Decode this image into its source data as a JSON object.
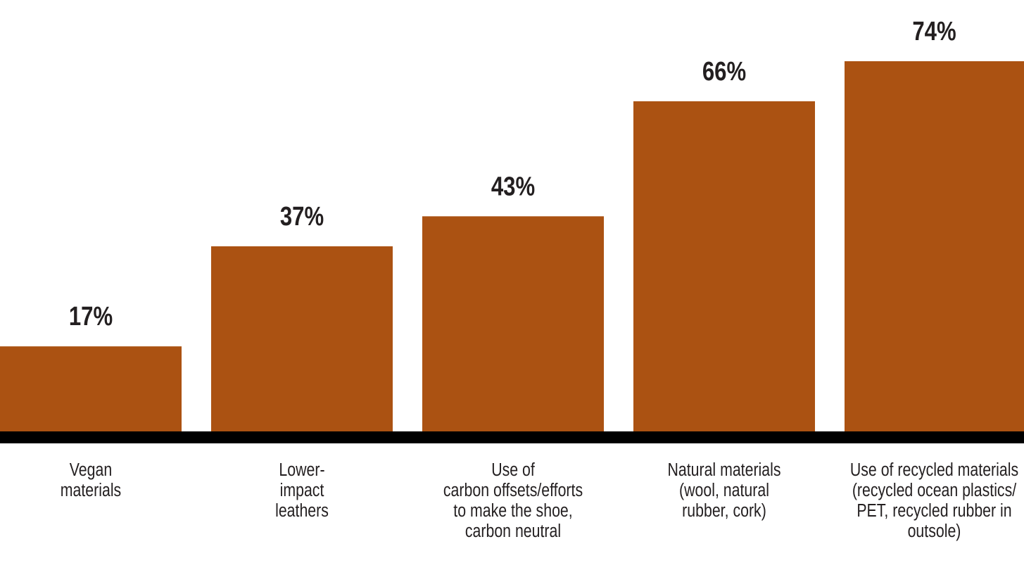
{
  "chart_data": {
    "type": "bar",
    "categories": [
      [
        "Vegan",
        "materials"
      ],
      [
        "Lower-",
        "impact",
        "leathers"
      ],
      [
        "Use of",
        "carbon offsets/efforts",
        "to make the shoe,",
        "carbon neutral"
      ],
      [
        "Natural materials",
        "(wool, natural",
        "rubber, cork)"
      ],
      [
        "Use of recycled materials",
        "(recycled ocean plastics/",
        "PET, recycled rubber in",
        "outsole)"
      ]
    ],
    "values": [
      17,
      37,
      43,
      66,
      74
    ],
    "value_labels": [
      "17%",
      "37%",
      "43%",
      "66%",
      "74%"
    ],
    "color": "#ab5212"
  }
}
